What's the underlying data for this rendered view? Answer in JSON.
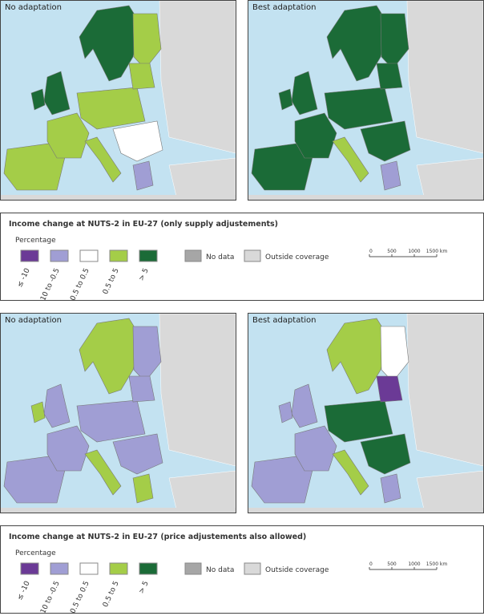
{
  "panels": [
    {
      "title": "No adaptation"
    },
    {
      "title": "Best adaptation"
    },
    {
      "title": "No adaptation"
    },
    {
      "title": "Best adaptation"
    }
  ],
  "legends": [
    {
      "title": "Income change at NUTS-2 in EU-27 (only supply adjustements)",
      "subtitle": "Percentage",
      "classes": [
        {
          "label": "≤ -10",
          "color": "#6b3a96"
        },
        {
          "label": "-10 to -0.5",
          "color": "#a09ed4"
        },
        {
          "label": "-0.5 to 0.5",
          "color": "#ffffff"
        },
        {
          "label": "0.5 to 5",
          "color": "#a4cd48"
        },
        {
          "label": "> 5",
          "color": "#1b6b37"
        }
      ],
      "no_data": {
        "label": "No data",
        "color": "#a6a6a6"
      },
      "outside": {
        "label": "Outside coverage",
        "color": "#d9d9d9"
      },
      "scale": [
        "0",
        "500",
        "1000",
        "1500 km"
      ]
    },
    {
      "title": "Income change at NUTS-2 in EU-27 (price adjustements also allowed)",
      "subtitle": "Percentage",
      "classes": [
        {
          "label": "≤ -10",
          "color": "#6b3a96"
        },
        {
          "label": "-10 to -0.5",
          "color": "#a09ed4"
        },
        {
          "label": "-0.5 to 0.5",
          "color": "#ffffff"
        },
        {
          "label": "0.5 to 5",
          "color": "#a4cd48"
        },
        {
          "label": "> 5",
          "color": "#1b6b37"
        }
      ],
      "no_data": {
        "label": "No data",
        "color": "#a6a6a6"
      },
      "outside": {
        "label": "Outside coverage",
        "color": "#d9d9d9"
      },
      "scale": [
        "0",
        "500",
        "1000",
        "1500 km"
      ]
    }
  ]
}
